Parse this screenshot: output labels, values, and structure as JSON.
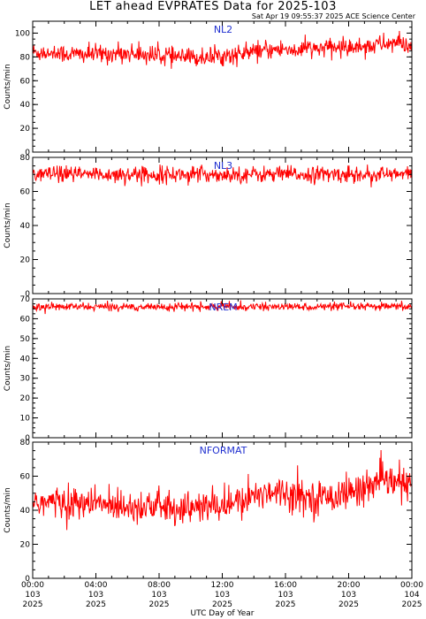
{
  "title": "LET ahead EVPRATES Data for 2025-103",
  "stamp": "Sat Apr 19 09:55:37 2025 ACE Science Center",
  "colors": {
    "series": "#ff0000",
    "panel_label": "#2030d0",
    "axis": "#000000"
  },
  "chart_data": [
    {
      "type": "line",
      "series_name": "NL2",
      "ylabel": "Counts/min",
      "ylim": [
        0,
        110
      ],
      "yticks": [
        0,
        20,
        40,
        60,
        80,
        100
      ],
      "baseline": [
        [
          0,
          84
        ],
        [
          3,
          82
        ],
        [
          6,
          83
        ],
        [
          9,
          80
        ],
        [
          10,
          79
        ],
        [
          13,
          82
        ],
        [
          15,
          86
        ],
        [
          18,
          87
        ],
        [
          21,
          89
        ],
        [
          23,
          92
        ],
        [
          24,
          88
        ]
      ],
      "noise": 5
    },
    {
      "type": "line",
      "series_name": "NL3",
      "ylabel": "Counts/min",
      "ylim": [
        0,
        80
      ],
      "yticks": [
        0,
        20,
        40,
        60,
        80
      ],
      "baseline": [
        [
          0,
          70
        ],
        [
          6,
          70
        ],
        [
          12,
          70
        ],
        [
          18,
          70
        ],
        [
          24,
          70
        ]
      ],
      "noise": 3
    },
    {
      "type": "line",
      "series_name": "NREM",
      "ylabel": "Counts/min",
      "ylim": [
        0,
        70
      ],
      "yticks": [
        0,
        10,
        20,
        30,
        40,
        50,
        60,
        70
      ],
      "baseline": [
        [
          0,
          66
        ],
        [
          24,
          66
        ]
      ],
      "noise": 1.2
    },
    {
      "type": "line",
      "series_name": "NFORMAT",
      "ylabel": "Counts/min",
      "ylim": [
        0,
        80
      ],
      "yticks": [
        0,
        20,
        40,
        60,
        80
      ],
      "baseline": [
        [
          0,
          45
        ],
        [
          6,
          43
        ],
        [
          10,
          41
        ],
        [
          13,
          44
        ],
        [
          15,
          52
        ],
        [
          18,
          47
        ],
        [
          20,
          50
        ],
        [
          22,
          57
        ],
        [
          24,
          55
        ]
      ],
      "noise": 6
    }
  ],
  "x_axis": {
    "title": "UTC Day of Year",
    "range_hours": [
      0,
      24
    ],
    "ticks": [
      {
        "hours": 0,
        "time": "00:00",
        "doy": "103",
        "year": "2025"
      },
      {
        "hours": 4,
        "time": "04:00",
        "doy": "103",
        "year": "2025"
      },
      {
        "hours": 8,
        "time": "08:00",
        "doy": "103",
        "year": "2025"
      },
      {
        "hours": 12,
        "time": "12:00",
        "doy": "103",
        "year": "2025"
      },
      {
        "hours": 16,
        "time": "16:00",
        "doy": "103",
        "year": "2025"
      },
      {
        "hours": 20,
        "time": "20:00",
        "doy": "103",
        "year": "2025"
      },
      {
        "hours": 24,
        "time": "00:00",
        "doy": "104",
        "year": "2025"
      }
    ]
  }
}
